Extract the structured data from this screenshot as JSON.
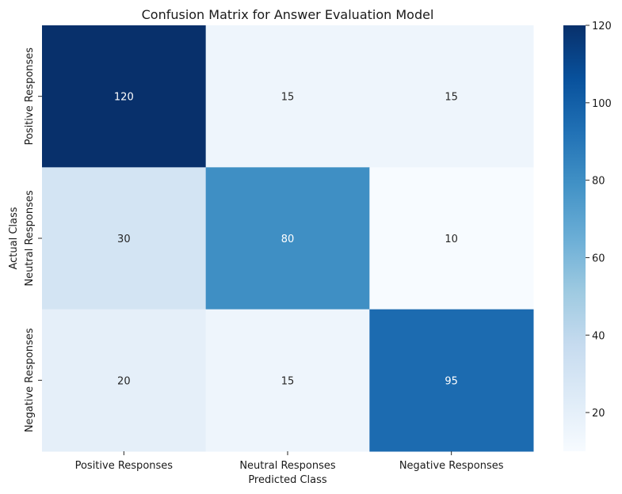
{
  "chart_data": {
    "type": "heatmap",
    "title": "Confusion Matrix for Answer Evaluation Model",
    "xlabel": "Predicted Class",
    "ylabel": "Actual Class",
    "x_categories": [
      "Positive Responses",
      "Neutral Responses",
      "Negative Responses"
    ],
    "y_categories": [
      "Positive Responses",
      "Neutral Responses",
      "Negative Responses"
    ],
    "values": [
      [
        120,
        15,
        15
      ],
      [
        30,
        80,
        10
      ],
      [
        20,
        15,
        95
      ]
    ],
    "colormap": "Blues",
    "colorbar": {
      "min": 10,
      "max": 120,
      "ticks": [
        20,
        40,
        60,
        80,
        100,
        120
      ]
    },
    "annotations": true
  }
}
